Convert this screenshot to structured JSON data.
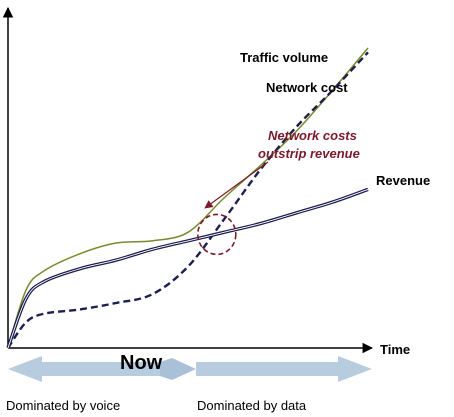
{
  "chart_data": {
    "type": "line",
    "title": "",
    "xlabel": "Time",
    "ylabel": "",
    "x": [
      0,
      0.5,
      1,
      2,
      3,
      4,
      5,
      6,
      7,
      8,
      9,
      10
    ],
    "series": [
      {
        "name": "Traffic volume",
        "color": "#7a8a2e",
        "dash": "solid",
        "values": [
          0,
          2.7,
          3.6,
          4.4,
          4.9,
          5.0,
          5.4,
          7.0,
          8.5,
          10.1,
          12.0,
          14.0
        ]
      },
      {
        "name": "Network cost",
        "color": "#1c1f4f",
        "dash": "dashed",
        "values": [
          0,
          1.2,
          1.6,
          1.8,
          2.1,
          2.5,
          3.8,
          6.0,
          8.3,
          10.3,
          12.0,
          13.8
        ]
      },
      {
        "name": "Revenue",
        "color": "#1c1f4f",
        "dash": "double",
        "values": [
          0,
          2.3,
          3.1,
          3.7,
          4.1,
          4.6,
          5.0,
          5.4,
          5.8,
          6.3,
          6.8,
          7.4
        ]
      }
    ],
    "annotation": {
      "lines": [
        "Network costs",
        "outstrip revenue"
      ],
      "color": "#7b1a2b",
      "points_to": {
        "x": 5.8,
        "y": 5.3
      }
    },
    "grid": false,
    "legend": "inline labels at line ends"
  },
  "timeline": {
    "marker": "Now",
    "left_label": "Dominated by voice",
    "right_label": "Dominated by data"
  }
}
